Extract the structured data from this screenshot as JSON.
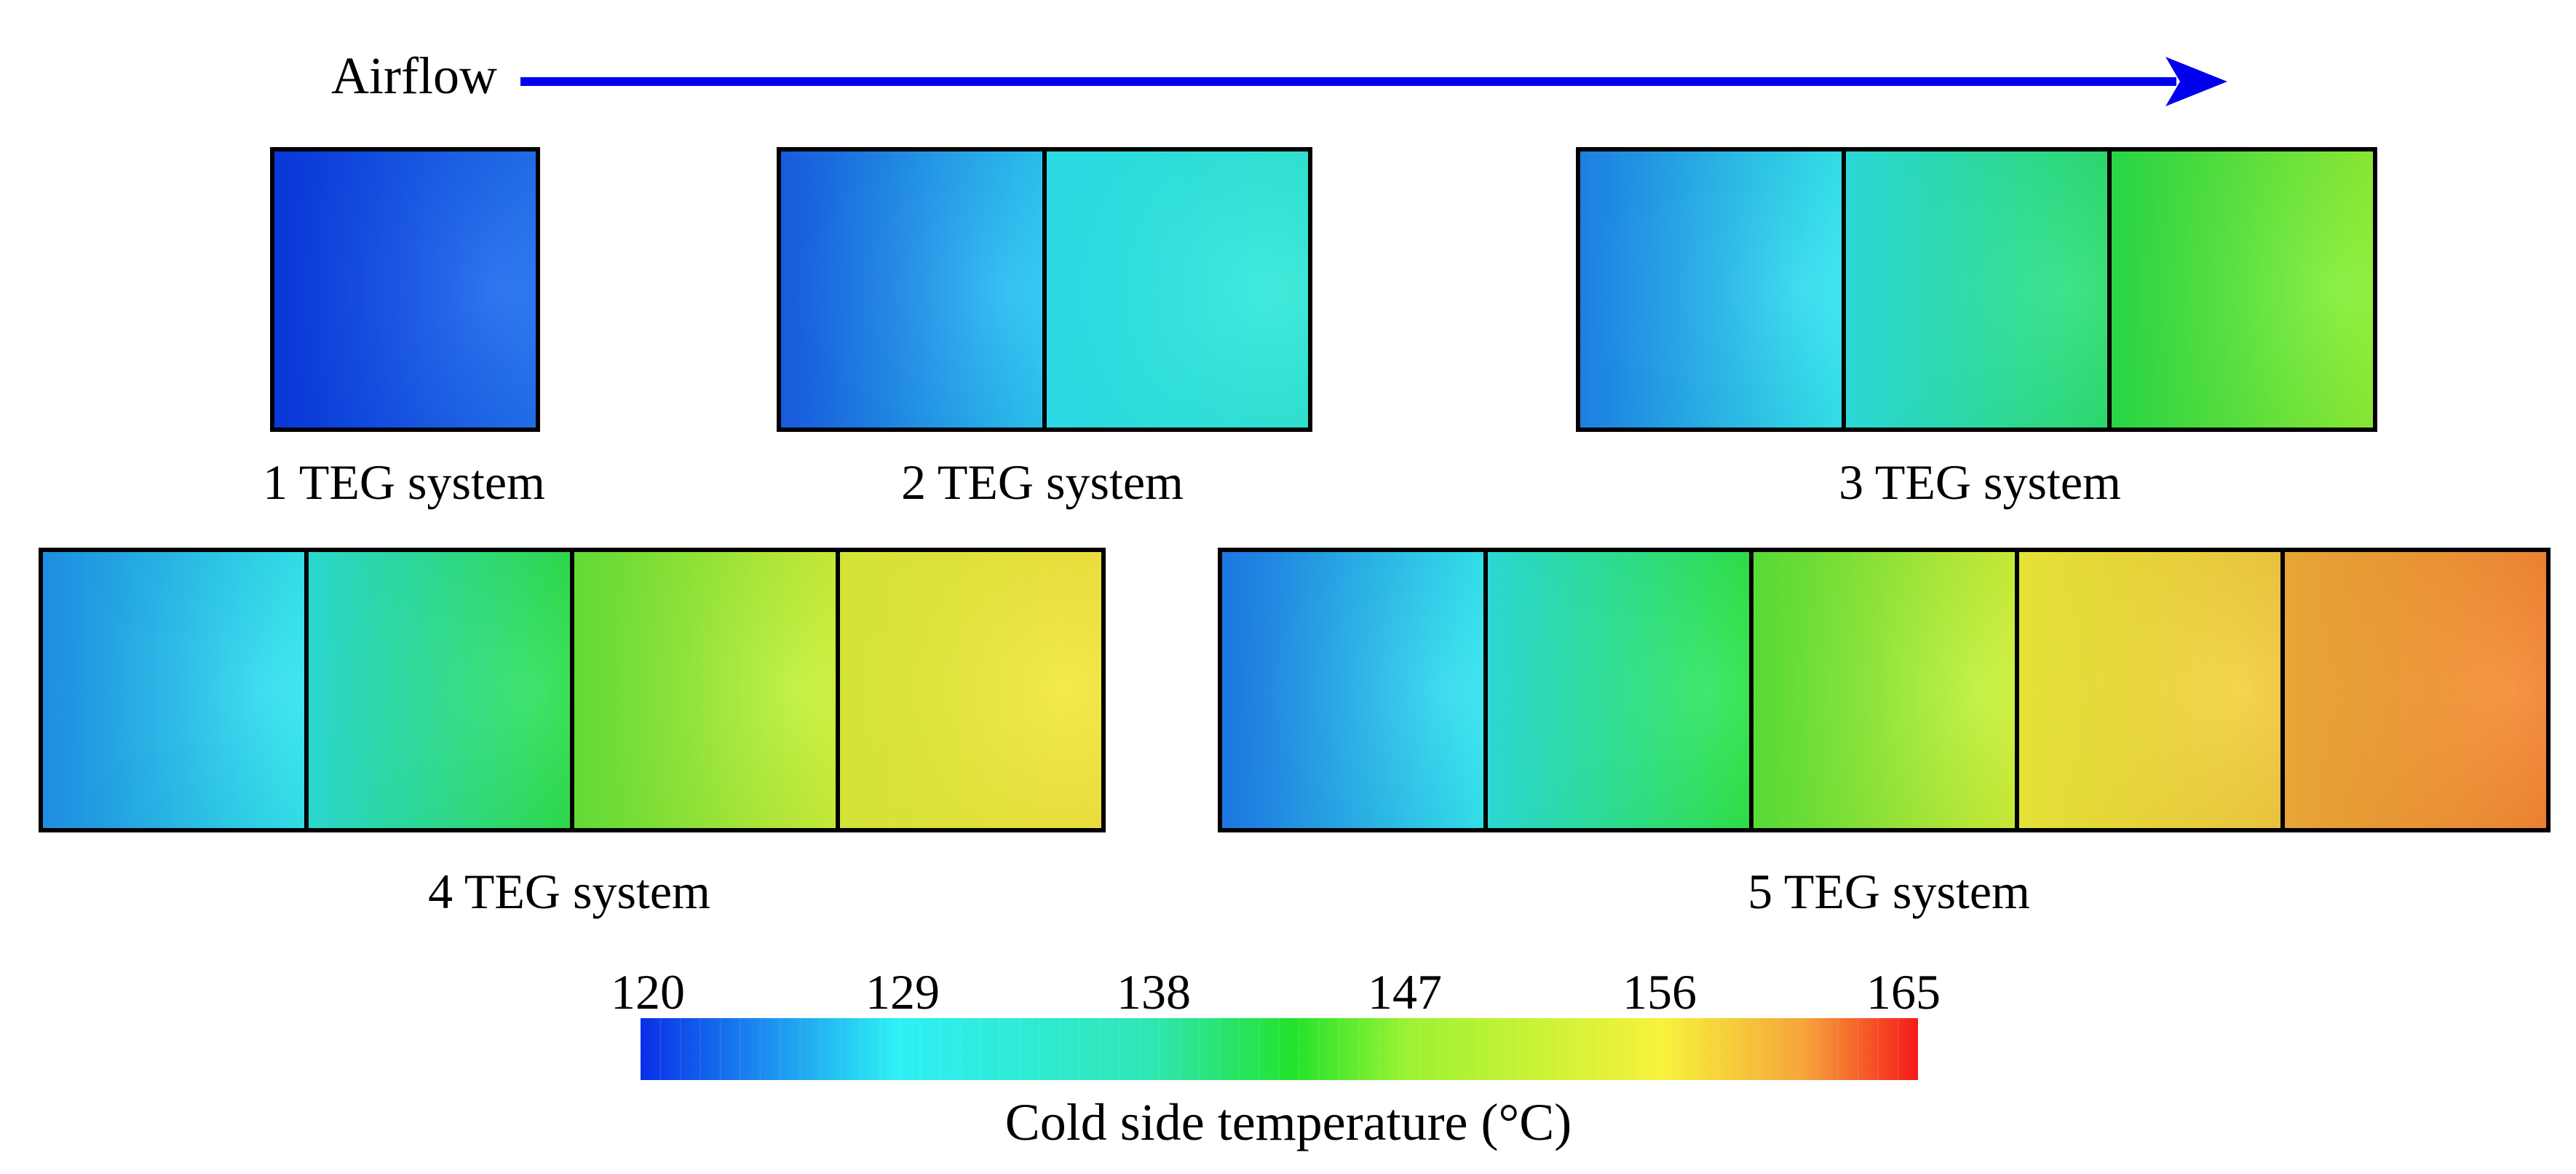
{
  "airflow": {
    "label": "Airflow",
    "color": "#0000ee"
  },
  "systems": [
    {
      "label": "1 TEG system",
      "modules": 1,
      "module_colors": [
        [
          "#0a3ae6",
          "#1b6ef0"
        ]
      ]
    },
    {
      "label": "2 TEG system",
      "modules": 2,
      "module_colors": [
        [
          "#1a5eea",
          "#24c8f4"
        ],
        [
          "#2ee8f2",
          "#2be9d6"
        ]
      ]
    },
    {
      "label": "3 TEG system",
      "modules": 3,
      "module_colors": [
        [
          "#1f86ef",
          "#2ee8ef"
        ],
        [
          "#2de6e6",
          "#28e06a"
        ],
        [
          "#2ae24a",
          "#8cf02e"
        ]
      ]
    },
    {
      "label": "4 TEG system",
      "modules": 4,
      "module_colors": [
        [
          "#1f95ef",
          "#2ee8ef"
        ],
        [
          "#2ee4dc",
          "#2ae046"
        ],
        [
          "#66e83a",
          "#cdf233"
        ],
        [
          "#e0f23a",
          "#f6e63a"
        ]
      ]
    },
    {
      "label": "5 TEG system",
      "modules": 5,
      "module_colors": [
        [
          "#1f7cef",
          "#2ee8f0"
        ],
        [
          "#2ee6e2",
          "#2ae642"
        ],
        [
          "#5ae83a",
          "#cff233"
        ],
        [
          "#f2f03a",
          "#f3c93a"
        ],
        [
          "#f5b13a",
          "#f5832d"
        ]
      ]
    }
  ],
  "colorbar": {
    "ticks": [
      "120",
      "129",
      "138",
      "147",
      "156",
      "165"
    ],
    "min": 120,
    "max": 165,
    "label": "Cold side temperature (°C)",
    "stops": [
      {
        "value": 120,
        "color": "#0a2fe8"
      },
      {
        "value": 129,
        "color": "#2ef0f6"
      },
      {
        "value": 138,
        "color": "#2fe6b4"
      },
      {
        "value": 143,
        "color": "#22e32c"
      },
      {
        "value": 147,
        "color": "#9cf232"
      },
      {
        "value": 156,
        "color": "#f7f23a"
      },
      {
        "value": 161,
        "color": "#f6a43a"
      },
      {
        "value": 165,
        "color": "#f51a1a"
      }
    ]
  }
}
